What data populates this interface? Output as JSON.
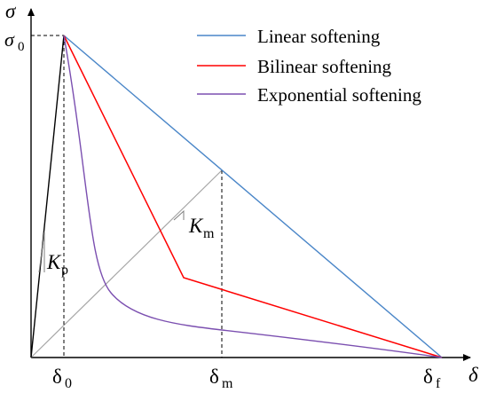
{
  "axes": {
    "y_symbol": "σ",
    "x_symbol": "δ",
    "sigma0_main": "σ",
    "sigma0_sub": "0",
    "delta0_main": "δ",
    "delta0_sub": "0",
    "deltam_main": "δ",
    "deltam_sub": "m",
    "deltaf_main": "δ",
    "deltaf_sub": "f"
  },
  "stiffness": {
    "kp_main": "K",
    "kp_sub": "p",
    "km_main": "K",
    "km_sub": "m"
  },
  "legend": [
    {
      "label": "Linear softening",
      "color": "#4a86c8"
    },
    {
      "label": "Bilinear softening",
      "color": "#ff0000"
    },
    {
      "label": "Exponential softening",
      "color": "#7b4fb0"
    }
  ],
  "colors": {
    "axis": "#000000",
    "guide": "#a6a6a6",
    "dashed": "#000000",
    "linear": "#4a86c8",
    "bilinear": "#ff0000",
    "exponential": "#7b4fb0"
  }
}
